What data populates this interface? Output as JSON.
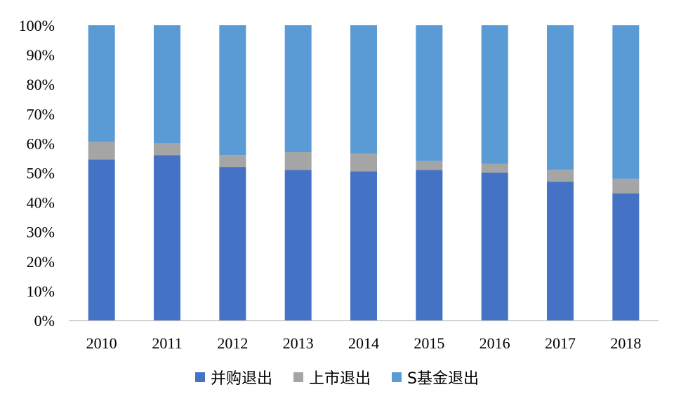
{
  "chart_data": {
    "type": "bar",
    "stacked": true,
    "categories": [
      "2010",
      "2011",
      "2012",
      "2013",
      "2014",
      "2015",
      "2016",
      "2017",
      "2018"
    ],
    "series": [
      {
        "name": "并购退出",
        "color": "#4472c4",
        "values": [
          54.5,
          56,
          52,
          51,
          50.5,
          51,
          50,
          47,
          43
        ]
      },
      {
        "name": "上市退出",
        "color": "#a5a5a5",
        "values": [
          6,
          4,
          4,
          6,
          6,
          3,
          3,
          4,
          5
        ]
      },
      {
        "name": "S基金退出",
        "color": "#5b9bd5",
        "values": [
          39.5,
          40,
          44,
          43,
          43.5,
          46,
          47,
          49,
          52
        ]
      }
    ],
    "yticks": [
      "0%",
      "10%",
      "20%",
      "30%",
      "40%",
      "50%",
      "60%",
      "70%",
      "80%",
      "90%",
      "100%"
    ],
    "ylim": [
      0,
      100
    ],
    "title": "",
    "xlabel": "",
    "ylabel": "",
    "grid": false,
    "legend_position": "bottom"
  }
}
